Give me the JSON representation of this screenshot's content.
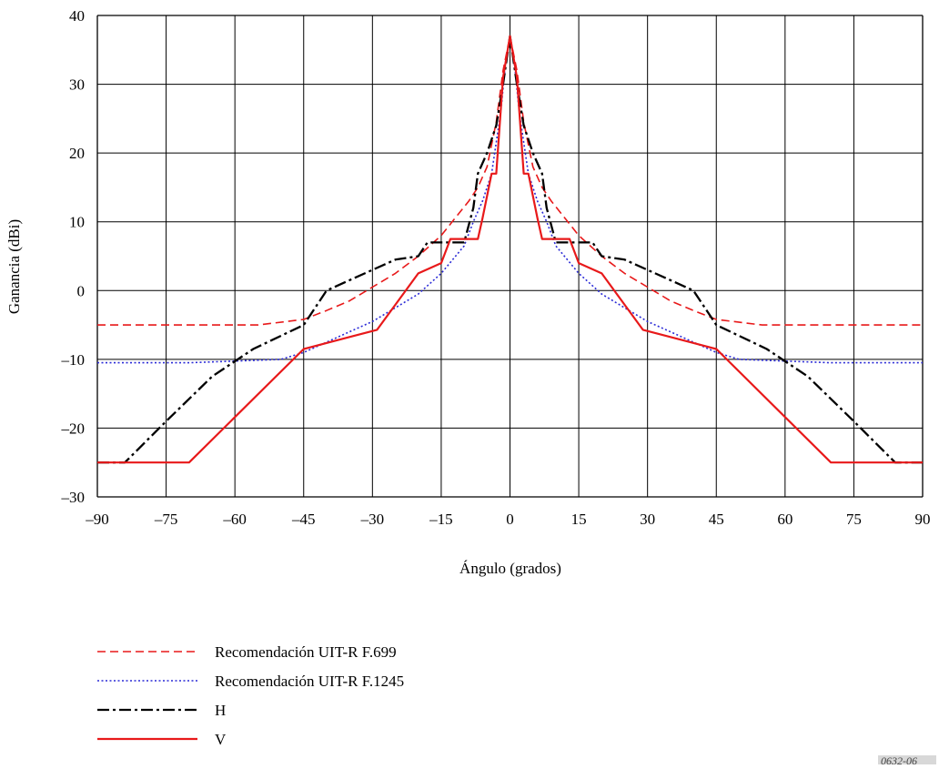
{
  "chart_data": {
    "type": "line",
    "title": "",
    "xlabel": "Ángulo (grados)",
    "ylabel": "Ganancia (dBi)",
    "xlim": [
      -90,
      90
    ],
    "ylim": [
      -30,
      40
    ],
    "xticks": [
      -90,
      -75,
      -60,
      -45,
      -30,
      -15,
      0,
      15,
      30,
      45,
      60,
      75,
      90
    ],
    "yticks": [
      -30,
      -20,
      -10,
      0,
      10,
      20,
      30,
      40
    ],
    "xtick_labels": [
      "–90",
      "–75",
      "–60",
      "–45",
      "–30",
      "–15",
      "0",
      "15",
      "30",
      "45",
      "60",
      "75",
      "90"
    ],
    "ytick_labels": [
      "–30",
      "–20",
      "–10",
      "0",
      "10",
      "20",
      "30",
      "40"
    ],
    "grid": true,
    "legend_position": "bottom-left",
    "series": [
      {
        "name": "Recomendación UIT-R F.699",
        "color": "#e8191a",
        "style": "dashed",
        "points": [
          [
            -90,
            -5
          ],
          [
            -55,
            -5
          ],
          [
            -45,
            -4.2
          ],
          [
            -40,
            -2.9
          ],
          [
            -35,
            -1.5
          ],
          [
            -30,
            0.5
          ],
          [
            -25,
            2.5
          ],
          [
            -20,
            5
          ],
          [
            -15,
            8
          ],
          [
            -12,
            10.5
          ],
          [
            -9,
            13
          ],
          [
            -7,
            15
          ],
          [
            -5,
            18
          ],
          [
            -3,
            24.5
          ],
          [
            -1.5,
            32
          ],
          [
            0,
            37
          ],
          [
            1.5,
            32
          ],
          [
            3,
            24.5
          ],
          [
            5,
            18
          ],
          [
            7,
            15
          ],
          [
            9,
            13
          ],
          [
            12,
            10.5
          ],
          [
            15,
            8
          ],
          [
            20,
            5
          ],
          [
            25,
            2.5
          ],
          [
            30,
            0.5
          ],
          [
            35,
            -1.5
          ],
          [
            40,
            -2.9
          ],
          [
            45,
            -4.2
          ],
          [
            55,
            -5
          ],
          [
            90,
            -5
          ]
        ]
      },
      {
        "name": "Recomendación UIT-R F.1245",
        "color": "#2a2ad6",
        "style": "dotted",
        "points": [
          [
            -90,
            -10.5
          ],
          [
            -70,
            -10.5
          ],
          [
            -50,
            -10
          ],
          [
            -45,
            -9
          ],
          [
            -40,
            -7.5
          ],
          [
            -35,
            -6
          ],
          [
            -30,
            -4.5
          ],
          [
            -25,
            -2.5
          ],
          [
            -20,
            -0.5
          ],
          [
            -15,
            2.5
          ],
          [
            -10,
            6.5
          ],
          [
            -8,
            10
          ],
          [
            -6,
            13
          ],
          [
            -4,
            17
          ],
          [
            -2,
            26
          ],
          [
            -1,
            33
          ],
          [
            0,
            37
          ],
          [
            1,
            33
          ],
          [
            2,
            26
          ],
          [
            4,
            17
          ],
          [
            6,
            13
          ],
          [
            8,
            10
          ],
          [
            10,
            6.5
          ],
          [
            15,
            2.5
          ],
          [
            20,
            -0.5
          ],
          [
            25,
            -2.5
          ],
          [
            30,
            -4.5
          ],
          [
            35,
            -6
          ],
          [
            40,
            -7.5
          ],
          [
            45,
            -9
          ],
          [
            50,
            -10
          ],
          [
            70,
            -10.5
          ],
          [
            90,
            -10.5
          ]
        ]
      },
      {
        "name": "H",
        "color": "#000000",
        "style": "dash-dot",
        "points": [
          [
            -90,
            -25
          ],
          [
            -84,
            -25
          ],
          [
            -75,
            -19
          ],
          [
            -65,
            -12.5
          ],
          [
            -56,
            -8.5
          ],
          [
            -45,
            -5
          ],
          [
            -40,
            0
          ],
          [
            -35,
            1.5
          ],
          [
            -30,
            3
          ],
          [
            -25,
            4.5
          ],
          [
            -20,
            5
          ],
          [
            -18,
            7
          ],
          [
            -10,
            7
          ],
          [
            -8,
            12
          ],
          [
            -7,
            17
          ],
          [
            -5,
            20
          ],
          [
            -3,
            24
          ],
          [
            -1.5,
            30
          ],
          [
            0,
            37
          ],
          [
            1.5,
            30
          ],
          [
            3,
            24
          ],
          [
            5,
            20
          ],
          [
            7,
            17
          ],
          [
            8,
            12
          ],
          [
            10,
            7
          ],
          [
            18,
            7
          ],
          [
            20,
            5
          ],
          [
            25,
            4.5
          ],
          [
            30,
            3
          ],
          [
            35,
            1.5
          ],
          [
            40,
            0
          ],
          [
            45,
            -5
          ],
          [
            56,
            -8.5
          ],
          [
            65,
            -12.5
          ],
          [
            75,
            -19
          ],
          [
            84,
            -25
          ],
          [
            90,
            -25
          ]
        ]
      },
      {
        "name": "V",
        "color": "#e8191a",
        "style": "solid",
        "points": [
          [
            -90,
            -25
          ],
          [
            -70,
            -25
          ],
          [
            -45,
            -8.5
          ],
          [
            -29,
            -5.7
          ],
          [
            -20,
            2.5
          ],
          [
            -15,
            4
          ],
          [
            -13,
            7.5
          ],
          [
            -7,
            7.5
          ],
          [
            -6,
            10.5
          ],
          [
            -4,
            17
          ],
          [
            -3,
            17
          ],
          [
            -1.5,
            31
          ],
          [
            0,
            37
          ],
          [
            1.5,
            31
          ],
          [
            3,
            17
          ],
          [
            4,
            17
          ],
          [
            6,
            10.5
          ],
          [
            7,
            7.5
          ],
          [
            13,
            7.5
          ],
          [
            15,
            4
          ],
          [
            20,
            2.5
          ],
          [
            29,
            -5.7
          ],
          [
            45,
            -8.5
          ],
          [
            70,
            -25
          ],
          [
            90,
            -25
          ]
        ]
      }
    ]
  },
  "ref_tag": "0632-06"
}
